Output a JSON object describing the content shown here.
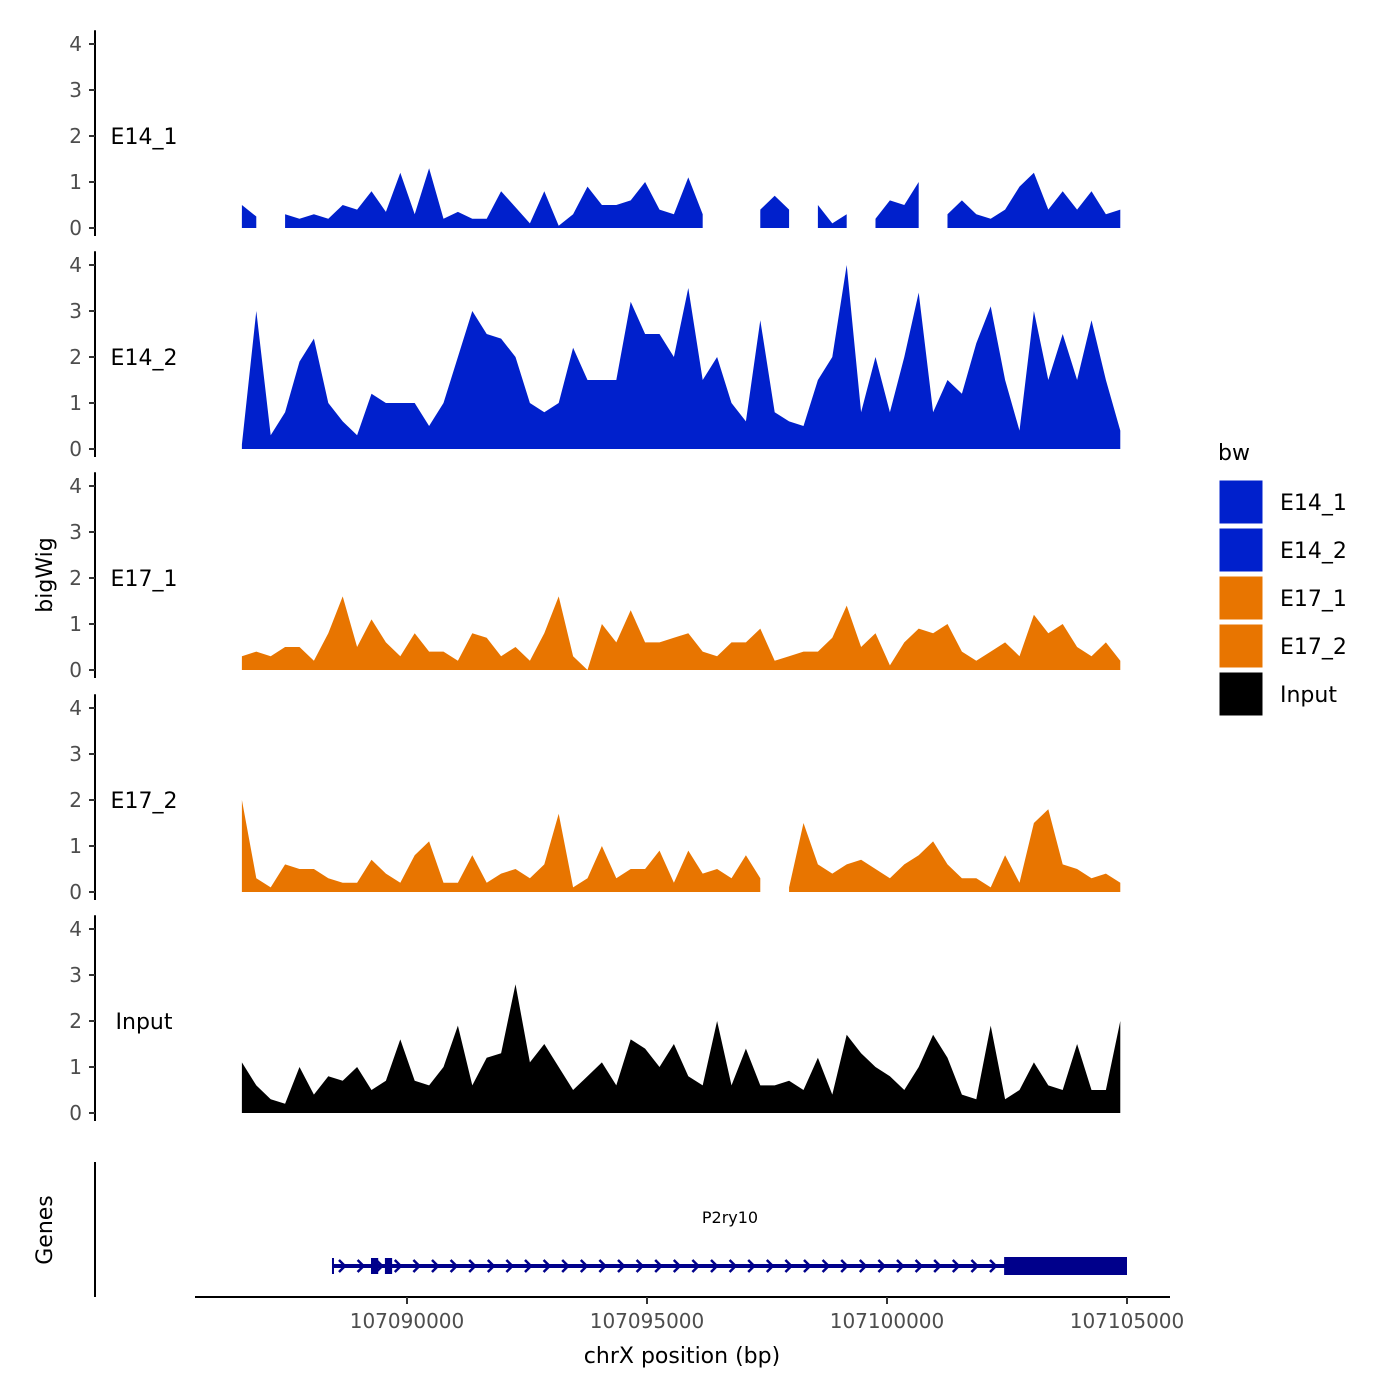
{
  "chart_data": {
    "type": "area",
    "ylabel": "bigWig",
    "xlabel": "chrX position (bp)",
    "x_start": 107086560,
    "x_step": 300,
    "xlim": [
      107084000,
      107106000
    ],
    "xticks": [
      107090000,
      107095000,
      107100000,
      107105000
    ],
    "xtick_labels": [
      "107090000",
      "107095000",
      "107100000",
      "107105000"
    ],
    "ylim": [
      0,
      4
    ],
    "yticks": [
      0,
      1,
      2,
      3,
      4
    ],
    "ytick_labels": [
      "0",
      "1",
      "2",
      "3",
      "4"
    ],
    "grid": false,
    "legend": {
      "title": "bw",
      "placement": "right",
      "entries": [
        {
          "label": "E14_1",
          "color": "#0020CC"
        },
        {
          "label": "E14_2",
          "color": "#0020CC"
        },
        {
          "label": "E17_1",
          "color": "#E87500"
        },
        {
          "label": "E17_2",
          "color": "#E87500"
        },
        {
          "label": "Input",
          "color": "#000000"
        }
      ]
    },
    "series": [
      {
        "name": "E14_1",
        "color": "#0020CC",
        "values": [
          0.5,
          0.25,
          null,
          0.3,
          0.2,
          0.3,
          0.2,
          0.5,
          0.4,
          0.8,
          0.35,
          1.2,
          0.3,
          1.3,
          0.2,
          0.35,
          0.2,
          0.2,
          0.8,
          0.45,
          0.1,
          0.8,
          0.05,
          0.3,
          0.9,
          0.5,
          0.5,
          0.6,
          1.0,
          0.4,
          0.3,
          1.1,
          0.3,
          null,
          null,
          null,
          0.4,
          0.7,
          0.4,
          null,
          0.5,
          0.1,
          0.3,
          null,
          0.2,
          0.6,
          0.5,
          1.0,
          null,
          0.3,
          0.6,
          0.3,
          0.2,
          0.4,
          0.9,
          1.2,
          0.4,
          0.8,
          0.4,
          0.8,
          0.3,
          0.4
        ]
      },
      {
        "name": "E14_2",
        "color": "#0020CC",
        "values": [
          0.1,
          3.0,
          0.3,
          0.8,
          1.9,
          2.4,
          1.0,
          0.6,
          0.3,
          1.2,
          1.0,
          1.0,
          1.0,
          0.5,
          1.0,
          2.0,
          3.0,
          2.5,
          2.4,
          2.0,
          1.0,
          0.8,
          1.0,
          2.2,
          1.5,
          1.5,
          1.5,
          3.2,
          2.5,
          2.5,
          2.0,
          3.5,
          1.5,
          2.0,
          1.0,
          0.6,
          2.8,
          0.8,
          0.6,
          0.5,
          1.5,
          2.0,
          4.0,
          0.8,
          2.0,
          0.8,
          2.0,
          3.4,
          0.8,
          1.5,
          1.2,
          2.3,
          3.1,
          1.5,
          0.4,
          3.0,
          1.5,
          2.5,
          1.5,
          2.8,
          1.5,
          0.4
        ]
      },
      {
        "name": "E17_1",
        "color": "#E87500",
        "values": [
          0.3,
          0.4,
          0.3,
          0.5,
          0.5,
          0.2,
          0.8,
          1.6,
          0.5,
          1.1,
          0.6,
          0.3,
          0.8,
          0.4,
          0.4,
          0.2,
          0.8,
          0.7,
          0.3,
          0.5,
          0.2,
          0.8,
          1.6,
          0.3,
          0.0,
          1.0,
          0.6,
          1.3,
          0.6,
          0.6,
          0.7,
          0.8,
          0.4,
          0.3,
          0.6,
          0.6,
          0.9,
          0.2,
          0.3,
          0.4,
          0.4,
          0.7,
          1.4,
          0.5,
          0.8,
          0.1,
          0.6,
          0.9,
          0.8,
          1.0,
          0.4,
          0.2,
          0.4,
          0.6,
          0.3,
          1.2,
          0.8,
          1.0,
          0.5,
          0.3,
          0.6,
          0.2
        ]
      },
      {
        "name": "E17_2",
        "color": "#E87500",
        "values": [
          2.0,
          0.3,
          0.1,
          0.6,
          0.5,
          0.5,
          0.3,
          0.2,
          0.2,
          0.7,
          0.4,
          0.2,
          0.8,
          1.1,
          0.2,
          0.2,
          0.8,
          0.2,
          0.4,
          0.5,
          0.3,
          0.6,
          1.7,
          0.1,
          0.3,
          1.0,
          0.3,
          0.5,
          0.5,
          0.9,
          0.2,
          0.9,
          0.4,
          0.5,
          0.3,
          0.8,
          0.3,
          null,
          0.1,
          1.5,
          0.6,
          0.4,
          0.6,
          0.7,
          0.5,
          0.3,
          0.6,
          0.8,
          1.1,
          0.6,
          0.3,
          0.3,
          0.1,
          0.8,
          0.2,
          1.5,
          1.8,
          0.6,
          0.5,
          0.3,
          0.4,
          0.2
        ]
      },
      {
        "name": "Input",
        "color": "#000000",
        "values": [
          1.1,
          0.6,
          0.3,
          0.2,
          1.0,
          0.4,
          0.8,
          0.7,
          1.0,
          0.5,
          0.7,
          1.6,
          0.7,
          0.6,
          1.0,
          1.9,
          0.6,
          1.2,
          1.3,
          2.8,
          1.1,
          1.5,
          1.0,
          0.5,
          0.8,
          1.1,
          0.6,
          1.6,
          1.4,
          1.0,
          1.5,
          0.8,
          0.6,
          2.0,
          0.6,
          1.4,
          0.6,
          0.6,
          0.7,
          0.5,
          1.2,
          0.4,
          1.7,
          1.3,
          1.0,
          0.8,
          0.5,
          1.0,
          1.7,
          1.2,
          0.4,
          0.3,
          1.9,
          0.3,
          0.5,
          1.1,
          0.6,
          0.5,
          1.5,
          0.5,
          0.5,
          2.0
        ]
      }
    ],
    "genes_panel": {
      "label": "Genes",
      "gene": {
        "name": "P2ry10",
        "strand": "+",
        "start": 107088458,
        "end": 107105000,
        "color": "#00008B",
        "exons": [
          [
            107089250,
            107089400
          ],
          [
            107089540,
            107089690
          ],
          [
            107102440,
            107105000
          ]
        ]
      }
    }
  }
}
